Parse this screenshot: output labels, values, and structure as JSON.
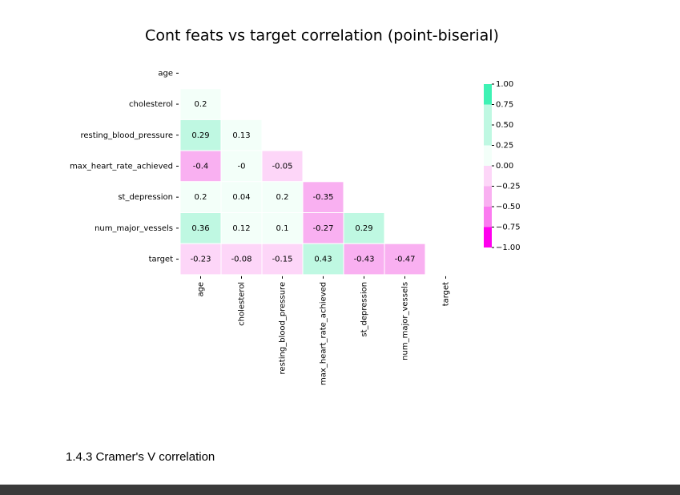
{
  "chart_data": {
    "type": "heatmap",
    "title": "Cont feats vs target correlation (point-biserial)",
    "x": [
      "age",
      "cholesterol",
      "resting_blood_pressure",
      "max_heart_rate_achieved",
      "st_depression",
      "num_major_vessels",
      "target"
    ],
    "y": [
      "age",
      "cholesterol",
      "resting_blood_pressure",
      "max_heart_rate_achieved",
      "st_depression",
      "num_major_vessels",
      "target"
    ],
    "values": [
      [
        null,
        null,
        null,
        null,
        null,
        null,
        null
      ],
      [
        0.2,
        null,
        null,
        null,
        null,
        null,
        null
      ],
      [
        0.29,
        0.13,
        null,
        null,
        null,
        null,
        null
      ],
      [
        -0.4,
        0,
        -0.05,
        null,
        null,
        null,
        null
      ],
      [
        0.2,
        0.04,
        0.2,
        -0.35,
        null,
        null,
        null
      ],
      [
        0.36,
        0.12,
        0.1,
        -0.27,
        0.29,
        null,
        null
      ],
      [
        -0.23,
        -0.08,
        -0.15,
        0.43,
        -0.43,
        -0.47,
        null
      ]
    ],
    "value_labels": [
      [
        null,
        null,
        null,
        null,
        null,
        null,
        null
      ],
      [
        "0.2",
        null,
        null,
        null,
        null,
        null,
        null
      ],
      [
        "0.29",
        "0.13",
        null,
        null,
        null,
        null,
        null
      ],
      [
        "-0.4",
        "-0",
        "-0.05",
        null,
        null,
        null,
        null
      ],
      [
        "0.2",
        "0.04",
        "0.2",
        "-0.35",
        null,
        null,
        null
      ],
      [
        "0.36",
        "0.12",
        "0.1",
        "-0.27",
        "0.29",
        null,
        null
      ],
      [
        "-0.23",
        "-0.08",
        "-0.15",
        "0.43",
        "-0.43",
        "-0.47",
        null
      ]
    ],
    "clim": [
      -1,
      1
    ],
    "colors": [
      "#ff00ee",
      "#fb7bf0",
      "#f9b0f1",
      "#fdd6f8",
      "#f3fff9",
      "#bff8e2",
      "#bff8e2",
      "#3ef2b4"
    ],
    "cticks": [
      {
        "value": -1,
        "label": "−1.00"
      },
      {
        "value": -0.75,
        "label": "−0.75"
      },
      {
        "value": -0.5,
        "label": "−0.50"
      },
      {
        "value": -0.25,
        "label": "−0.25"
      },
      {
        "value": 0,
        "label": "0.00"
      },
      {
        "value": 0.25,
        "label": "0.25"
      },
      {
        "value": 0.5,
        "label": "0.50"
      },
      {
        "value": 0.75,
        "label": "0.75"
      },
      {
        "value": 1,
        "label": "1.00"
      }
    ]
  },
  "section": {
    "heading": "1.4.3 Cramer's V correlation"
  }
}
